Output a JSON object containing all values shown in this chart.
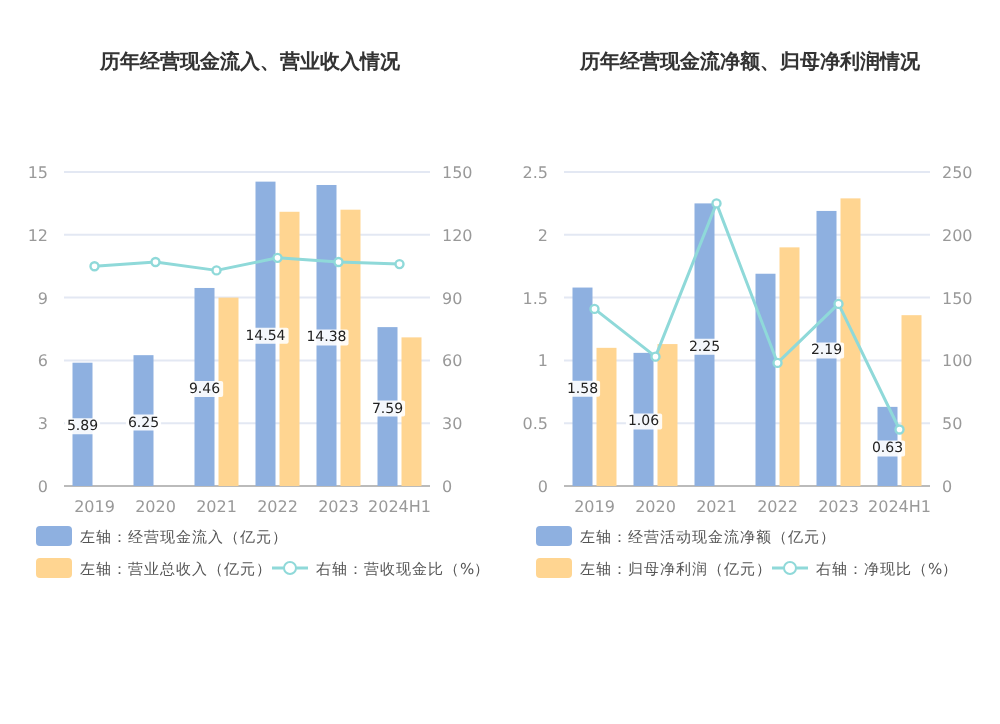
{
  "chart_data": [
    {
      "type": "bar",
      "title": "历年经营现金流入、营业收入情况",
      "categories": [
        "2019",
        "2020",
        "2021",
        "2022",
        "2023",
        "2024H1"
      ],
      "ylim": [
        0,
        15
      ],
      "yticks": [
        0,
        3,
        6,
        9,
        12,
        15
      ],
      "y2lim": [
        0,
        150
      ],
      "y2ticks": [
        0,
        30,
        60,
        90,
        120,
        150
      ],
      "grid": "y",
      "legend": "bottom",
      "series": [
        {
          "name": "左轴：经营现金流入（亿元）",
          "color": "#8eb0e0",
          "values": [
            5.89,
            6.25,
            9.46,
            14.54,
            14.38,
            7.59
          ],
          "value_labels": [
            "5.89",
            "6.25",
            "9.46",
            "14.54",
            "14.38",
            "7.59"
          ]
        },
        {
          "name": "左轴：营业总收入（亿元）",
          "color": "#ffd591",
          "values": [
            null,
            null,
            9.0,
            13.1,
            13.2,
            7.1
          ]
        },
        {
          "name": "右轴：营收现金比（%）",
          "type": "line",
          "axis": "y2",
          "marker": "circle",
          "color": "#8fd9d9",
          "values": [
            105,
            107,
            103,
            109,
            107,
            106
          ]
        }
      ]
    },
    {
      "type": "bar",
      "title": "历年经营现金流净额、归母净利润情况",
      "categories": [
        "2019",
        "2020",
        "2021",
        "2022",
        "2023",
        "2024H1"
      ],
      "ylim": [
        0,
        2.5
      ],
      "yticks": [
        0,
        0.5,
        1,
        1.5,
        2,
        2.5
      ],
      "y2lim": [
        0,
        250
      ],
      "y2ticks": [
        0,
        50,
        100,
        150,
        200,
        250
      ],
      "grid": "y",
      "legend": "bottom",
      "series": [
        {
          "name": "左轴：经营活动现金流净额（亿元）",
          "color": "#8eb0e0",
          "values": [
            1.58,
            1.06,
            2.25,
            1.69,
            2.19,
            0.63
          ],
          "value_labels": [
            "1.58",
            "1.06",
            "2.25",
            null,
            "2.19",
            "0.63"
          ]
        },
        {
          "name": "左轴：归母净利润（亿元）",
          "color": "#ffd591",
          "values": [
            1.1,
            1.13,
            null,
            1.9,
            2.29,
            1.36
          ]
        },
        {
          "name": "右轴：净现比（%）",
          "type": "line",
          "axis": "y2",
          "marker": "circle",
          "color": "#8fd9d9",
          "values": [
            141,
            103,
            225,
            98,
            145,
            45
          ]
        }
      ]
    }
  ]
}
